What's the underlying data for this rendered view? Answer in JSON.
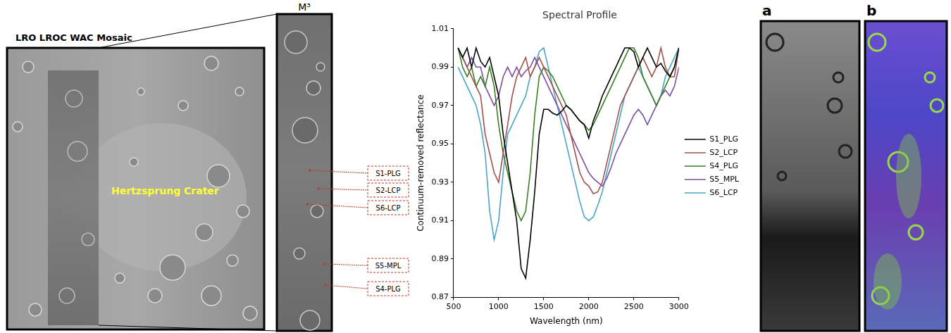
{
  "figure": {
    "mosaic": {
      "title": "LRO LROC WAC Mosaic",
      "label": "Hertzsprung Crater"
    },
    "strip": {
      "title": "M³",
      "sites": [
        "S1-PLG",
        "S2-LCP",
        "S6-LCP",
        "S5-MPL",
        "S4-PLG"
      ]
    },
    "panels": [
      "a",
      "b"
    ]
  },
  "chart_data": {
    "type": "line",
    "title": "Spectral Profile",
    "x_label": "Wavelength (nm)",
    "y_label": "Continuum-removed reflectance",
    "x": [
      550,
      600,
      650,
      700,
      750,
      800,
      850,
      900,
      950,
      1000,
      1050,
      1100,
      1150,
      1200,
      1250,
      1300,
      1350,
      1400,
      1450,
      1500,
      1550,
      1600,
      1650,
      1700,
      1750,
      1800,
      1850,
      1900,
      1950,
      2000,
      2050,
      2100,
      2150,
      2200,
      2250,
      2300,
      2350,
      2400,
      2450,
      2500,
      2550,
      2600,
      2650,
      2700,
      2750,
      2800,
      2850,
      2900,
      2950,
      3000
    ],
    "series": [
      {
        "name": "S1_PLG",
        "color": "#000000",
        "values": [
          1.0,
          0.995,
          1.0,
          0.99,
          1.0,
          0.993,
          0.99,
          0.995,
          0.985,
          0.975,
          0.955,
          0.94,
          0.925,
          0.91,
          0.885,
          0.88,
          0.9,
          0.925,
          0.955,
          0.968,
          0.968,
          0.966,
          0.965,
          0.967,
          0.97,
          0.968,
          0.965,
          0.962,
          0.96,
          0.953,
          0.962,
          0.968,
          0.975,
          0.98,
          0.985,
          0.99,
          0.995,
          1.0,
          1.0,
          0.998,
          0.99,
          0.995,
          1.0,
          0.995,
          0.99,
          0.992,
          0.988,
          0.985,
          0.99,
          1.0
        ]
      },
      {
        "name": "S2_LCP",
        "color": "#a0504a",
        "values": [
          1.0,
          0.995,
          0.99,
          0.985,
          0.98,
          0.975,
          0.955,
          0.945,
          0.935,
          0.93,
          0.945,
          0.96,
          0.975,
          0.985,
          0.99,
          0.995,
          0.985,
          0.99,
          0.995,
          0.99,
          0.985,
          0.98,
          0.975,
          0.97,
          0.965,
          0.955,
          0.945,
          0.935,
          0.93,
          0.928,
          0.924,
          0.925,
          0.93,
          0.94,
          0.95,
          0.96,
          0.97,
          0.975,
          0.98,
          0.985,
          0.99,
          0.995,
          0.99,
          0.985,
          0.99,
          1.0,
          0.99,
          0.985,
          0.985,
          1.0
        ]
      },
      {
        "name": "S4_PLG",
        "color": "#3a7d23",
        "values": [
          1.0,
          0.99,
          0.985,
          0.99,
          0.98,
          0.985,
          0.98,
          0.99,
          0.98,
          0.96,
          0.945,
          0.935,
          0.925,
          0.915,
          0.91,
          0.915,
          0.935,
          0.965,
          0.985,
          0.99,
          0.988,
          0.985,
          0.98,
          0.975,
          0.97,
          0.968,
          0.965,
          0.962,
          0.96,
          0.957,
          0.96,
          0.965,
          0.97,
          0.975,
          0.98,
          0.985,
          0.99,
          0.995,
          1.0,
          1.0,
          0.995,
          0.985,
          0.98,
          0.975,
          0.97,
          0.975,
          0.98,
          0.985,
          0.99,
          1.0
        ]
      },
      {
        "name": "S5_MPL",
        "color": "#7b4fa0",
        "values": [
          1.0,
          0.995,
          0.99,
          0.995,
          0.99,
          0.99,
          0.98,
          0.975,
          0.97,
          0.975,
          0.985,
          0.99,
          0.985,
          0.99,
          0.985,
          0.988,
          0.99,
          0.995,
          0.99,
          0.985,
          0.98,
          0.975,
          0.97,
          0.965,
          0.96,
          0.955,
          0.95,
          0.945,
          0.94,
          0.935,
          0.932,
          0.93,
          0.928,
          0.932,
          0.938,
          0.945,
          0.95,
          0.955,
          0.96,
          0.965,
          0.968,
          0.965,
          0.96,
          0.965,
          0.97,
          0.975,
          0.978,
          0.975,
          0.98,
          0.99
        ]
      },
      {
        "name": "S6_LCP",
        "color": "#4aa3c8",
        "values": [
          0.99,
          0.985,
          0.98,
          0.975,
          0.97,
          0.96,
          0.945,
          0.915,
          0.9,
          0.91,
          0.935,
          0.955,
          0.96,
          0.965,
          0.97,
          0.975,
          0.985,
          0.99,
          0.998,
          1.0,
          0.99,
          0.98,
          0.97,
          0.96,
          0.95,
          0.94,
          0.93,
          0.92,
          0.912,
          0.91,
          0.912,
          0.918,
          0.925,
          0.935,
          0.945,
          0.955,
          0.965,
          0.975,
          0.98,
          0.985,
          0.99,
          0.985,
          0.98,
          0.975,
          0.97,
          0.975,
          0.985,
          0.99,
          0.995,
          1.0
        ]
      }
    ],
    "xlim": [
      500,
      3000
    ],
    "xticks": [
      500,
      1000,
      1500,
      2000,
      2500,
      3000
    ],
    "ylim": [
      0.87,
      1.01
    ],
    "yticks": [
      0.87,
      0.89,
      0.91,
      0.93,
      0.95,
      0.97,
      0.99,
      1.01
    ],
    "grid": false,
    "legend": "right"
  }
}
